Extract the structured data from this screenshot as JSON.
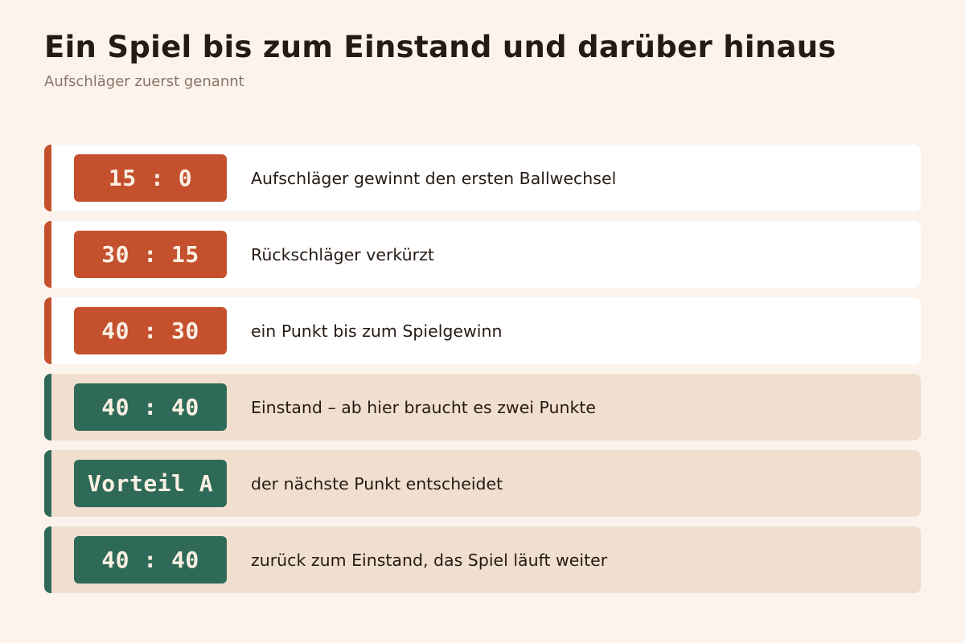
{
  "header": {
    "title": "Ein Spiel bis zum Einstand und darüber hinaus",
    "subtitle": "Aufschläger zuerst genannt"
  },
  "colors": {
    "background": "#fcf3ec",
    "orange": "#c4502e",
    "green": "#2e6a57",
    "light_row": "#ffffff",
    "tinted_row": "#f0dfcf"
  },
  "rows": [
    {
      "score": "15 : 0",
      "description": "Aufschläger gewinnt den ersten Ballwechsel",
      "color": "orange"
    },
    {
      "score": "30 : 15",
      "description": "Rückschläger verkürzt",
      "color": "orange"
    },
    {
      "score": "40 : 30",
      "description": "ein Punkt bis zum Spielgewinn",
      "color": "orange"
    },
    {
      "score": "40 : 40",
      "description": "Einstand – ab hier braucht es zwei Punkte",
      "color": "green"
    },
    {
      "score": "Vorteil A",
      "description": "der nächste Punkt entscheidet",
      "color": "green"
    },
    {
      "score": "40 : 40",
      "description": "zurück zum Einstand, das Spiel läuft weiter",
      "color": "green"
    }
  ]
}
